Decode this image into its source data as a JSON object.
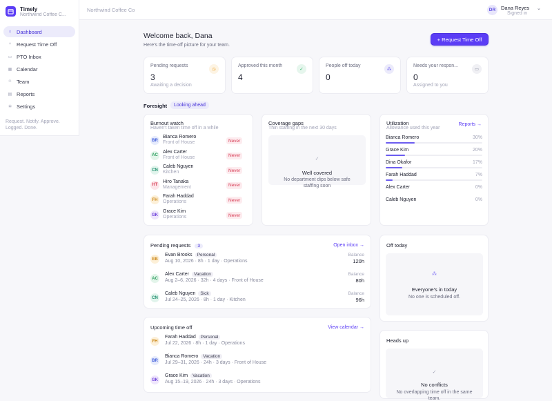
{
  "app": {
    "name": "Timely",
    "org": "Northwind Coffee C...",
    "brand_icon": "calendar-icon"
  },
  "sidebar": {
    "items": [
      {
        "label": "Dashboard",
        "icon": "home-icon",
        "active": true
      },
      {
        "label": "Request Time Off",
        "icon": "plus-icon"
      },
      {
        "label": "PTO Inbox",
        "icon": "inbox-icon"
      },
      {
        "label": "Calendar",
        "icon": "calendar-icon"
      },
      {
        "label": "Team",
        "icon": "users-icon"
      },
      {
        "label": "Reports",
        "icon": "chart-icon"
      },
      {
        "label": "Settings",
        "icon": "gear-icon"
      }
    ],
    "tagline": "Request. Notify. Approve. Logged. Done."
  },
  "topbar": {
    "org": "Northwind Coffee Co",
    "user_initials": "DR",
    "user_name": "Dana Reyes",
    "user_status": "Signed in",
    "chevron": "⌄"
  },
  "header": {
    "title": "Welcome back, Dana",
    "subtitle": "Here's the time-off picture for your team.",
    "button": "+ Request Time Off"
  },
  "stats": [
    {
      "label": "Pending requests",
      "value": "3",
      "note": "Awaiting a decision",
      "icon": "clock-icon",
      "color": "#f0a93b",
      "bg": "#fdf4e4"
    },
    {
      "label": "Approved this month",
      "value": "4",
      "note": "",
      "icon": "check-icon",
      "color": "#2fb56a",
      "bg": "#e6f6ed"
    },
    {
      "label": "People off today",
      "value": "0",
      "note": "",
      "icon": "people-icon",
      "color": "#6b5cf0",
      "bg": "#ecebfb"
    },
    {
      "label": "Needs your respon...",
      "value": "0",
      "note": "Assigned to you",
      "icon": "message-icon",
      "color": "#8a8c9f",
      "bg": "#f0f0f4"
    }
  ],
  "foresight": {
    "title": "Foresight",
    "badge": "Looking ahead"
  },
  "burnout": {
    "title": "Burnout watch",
    "subtitle": "Haven't taken time off in a while",
    "people": [
      {
        "initials": "BR",
        "name": "Bianca Romero",
        "team": "Front of House",
        "status": "Never",
        "color": "#3d5bd9",
        "bg": "#e6ebfc"
      },
      {
        "initials": "AC",
        "name": "Alex Carter",
        "team": "Front of House",
        "status": "Never",
        "color": "#2a9d5c",
        "bg": "#e3f5ea"
      },
      {
        "initials": "CN",
        "name": "Caleb Nguyen",
        "team": "Kitchen",
        "status": "Never",
        "color": "#1f8f6e",
        "bg": "#e1f4ec"
      },
      {
        "initials": "HT",
        "name": "Hiro Tanaka",
        "team": "Management",
        "status": "Never",
        "color": "#d63a53",
        "bg": "#fde6ea"
      },
      {
        "initials": "FH",
        "name": "Farah Haddad",
        "team": "Operations",
        "status": "Never",
        "color": "#c98312",
        "bg": "#fdf0d8"
      },
      {
        "initials": "GK",
        "name": "Grace Kim",
        "team": "Operations",
        "status": "Never",
        "color": "#6b3fd9",
        "bg": "#efe6fc"
      }
    ]
  },
  "coverage": {
    "title": "Coverage gaps",
    "subtitle": "Thin staffing in the next 30 days",
    "check": "✓",
    "empty_title": "Well covered",
    "empty_body": "No department dips below safe staffing soon"
  },
  "utilization": {
    "title": "Utilization",
    "subtitle": "Allowance used this year",
    "link": "Reports →",
    "rows": [
      {
        "name": "Bianca Romero",
        "pct_label": "30%",
        "pct": 0.3
      },
      {
        "name": "Grace Kim",
        "pct_label": "20%",
        "pct": 0.2
      },
      {
        "name": "Dina Okafor",
        "pct_label": "17%",
        "pct": 0.17
      },
      {
        "name": "Farah Haddad",
        "pct_label": "7%",
        "pct": 0.07
      },
      {
        "name": "Alex Carter",
        "pct_label": "0%",
        "pct": 0
      },
      {
        "name": "Caleb Nguyen",
        "pct_label": "0%",
        "pct": 0
      }
    ]
  },
  "pending": {
    "title": "Pending requests",
    "count": "3",
    "link": "Open inbox →",
    "balance_label": "Balance",
    "rows": [
      {
        "initials": "EB",
        "name": "Evan Brooks",
        "type": "Personal",
        "meta": "Aug 10, 2026 · 8h · 1 day · Operations",
        "balance": "120h",
        "color": "#c98312",
        "bg": "#fdf0d8"
      },
      {
        "initials": "AC",
        "name": "Alex Carter",
        "type": "Vacation",
        "meta": "Aug 2–6, 2026 · 32h · 4 days · Front of House",
        "balance": "80h",
        "color": "#2a9d5c",
        "bg": "#e3f5ea"
      },
      {
        "initials": "CN",
        "name": "Caleb Nguyen",
        "type": "Sick",
        "meta": "Jul 24–25, 2026 · 8h · 1 day · Kitchen",
        "balance": "96h",
        "color": "#1f8f6e",
        "bg": "#e1f4ec"
      }
    ]
  },
  "upcoming": {
    "title": "Upcoming time off",
    "link": "View calendar →",
    "rows": [
      {
        "initials": "FH",
        "name": "Farah Haddad",
        "type": "Personal",
        "meta": "Jul 22, 2026 · 8h · 1 day · Operations",
        "color": "#c98312",
        "bg": "#fdf0d8"
      },
      {
        "initials": "BR",
        "name": "Bianca Romero",
        "type": "Vacation",
        "meta": "Jul 29–31, 2026 · 24h · 3 days · Front of House",
        "color": "#3d5bd9",
        "bg": "#e6ebfc"
      },
      {
        "initials": "GK",
        "name": "Grace Kim",
        "type": "Vacation",
        "meta": "Aug 15–19, 2026 · 24h · 3 days · Operations",
        "color": "#6b3fd9",
        "bg": "#efe6fc"
      }
    ]
  },
  "off_today": {
    "title": "Off today",
    "icon": "people-icon",
    "empty_title": "Everyone's in today",
    "empty_body": "No one is scheduled off."
  },
  "heads_up": {
    "title": "Heads up",
    "icon": "check-icon",
    "empty_title": "No conflicts",
    "empty_body": "No overlapping time off in the same team."
  },
  "colors": {
    "accent": "#5b3df5",
    "danger": "#d63a53"
  }
}
